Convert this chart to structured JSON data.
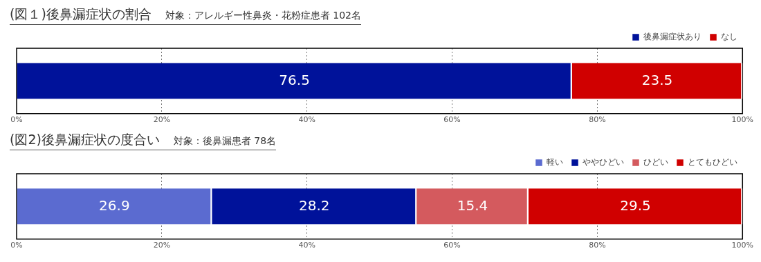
{
  "chart_data": [
    {
      "type": "bar",
      "title": "(図１)後鼻漏症状の割合",
      "subtitle": "対象：アレルギー性鼻炎・花粉症患者 102名",
      "orientation": "horizontal",
      "stacked": true,
      "categories": [
        null
      ],
      "series": [
        {
          "name": "後鼻漏症状あり",
          "color": "#00129a",
          "values": [
            76.5
          ]
        },
        {
          "name": "なし",
          "color": "#d00000",
          "values": [
            23.5
          ]
        }
      ],
      "xlim": [
        0,
        100
      ],
      "xticks": [
        {
          "value": 0,
          "label": "0%"
        },
        {
          "value": 20,
          "label": "20%"
        },
        {
          "value": 40,
          "label": "40%"
        },
        {
          "value": 60,
          "label": "60%"
        },
        {
          "value": 80,
          "label": "80%"
        },
        {
          "value": 100,
          "label": "100%"
        }
      ],
      "grid": "x",
      "legend": "top right",
      "data_labels": true
    },
    {
      "type": "bar",
      "title": "(図2)後鼻漏症状の度合い",
      "subtitle": "対象：後鼻漏患者 78名",
      "orientation": "horizontal",
      "stacked": true,
      "categories": [
        null
      ],
      "series": [
        {
          "name": "軽い",
          "color": "#5b6bd0",
          "values": [
            26.9
          ]
        },
        {
          "name": "ややひどい",
          "color": "#00129a",
          "values": [
            28.2
          ]
        },
        {
          "name": "ひどい",
          "color": "#d45a5e",
          "values": [
            15.4
          ]
        },
        {
          "name": "とてもひどい",
          "color": "#d00000",
          "values": [
            29.5
          ]
        }
      ],
      "xlim": [
        0,
        100
      ],
      "xticks": [
        {
          "value": 0,
          "label": "0%"
        },
        {
          "value": 20,
          "label": "20%"
        },
        {
          "value": 40,
          "label": "40%"
        },
        {
          "value": 60,
          "label": "60%"
        },
        {
          "value": 80,
          "label": "80%"
        },
        {
          "value": 100,
          "label": "100%"
        }
      ],
      "grid": "x",
      "legend": "top right",
      "data_labels": true
    }
  ]
}
